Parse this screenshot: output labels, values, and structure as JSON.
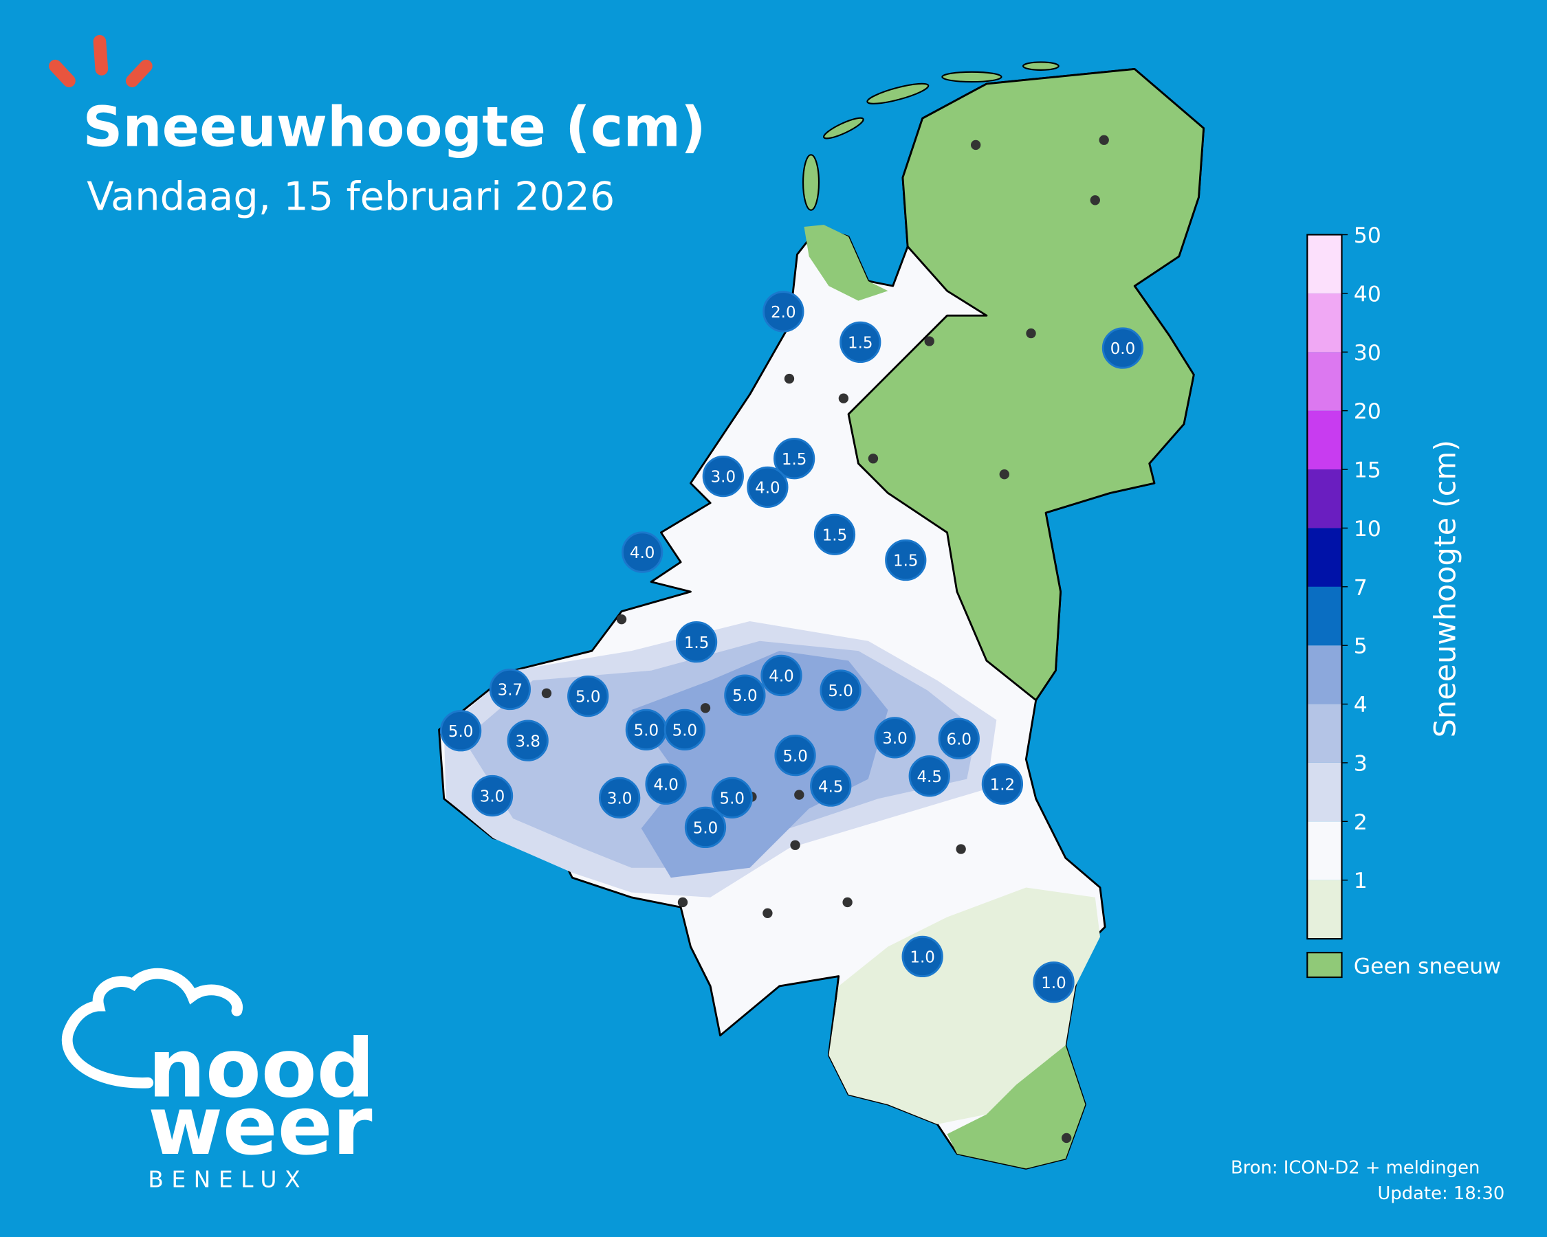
{
  "header": {
    "title": "Sneeuwhoogte (cm)",
    "subtitle": "Vandaag, 15 februari 2026"
  },
  "markers": [
    "2.0",
    "1.5",
    "0.0",
    "1.5",
    "3.0",
    "4.0",
    "1.5",
    "1.5",
    "4.0",
    "1.5",
    "3.7",
    "5.0",
    "4.0",
    "5.0",
    "5.0",
    "5.0",
    "3.8",
    "5.0",
    "5.0",
    "3.0",
    "6.0",
    "5.0",
    "4.5",
    "1.2",
    "3.0",
    "3.0",
    "4.0",
    "5.0",
    "4.5",
    "5.0",
    "1.0",
    "1.0"
  ],
  "legend": {
    "title": "Sneeuwhoogte (cm)",
    "ticks": [
      1,
      2,
      3,
      4,
      5,
      7,
      10,
      15,
      20,
      30,
      40,
      50
    ],
    "colors": [
      "#e6f0dc",
      "#f8f9fc",
      "#d6ddf0",
      "#b4c4e6",
      "#8ca8dc",
      "#0a6ec2",
      "#0012a8",
      "#6a1ec0",
      "#c83cf0",
      "#dc78f0",
      "#f0a8f4",
      "#fce0fc"
    ],
    "no_snow_label": "Geen sneeuw",
    "no_snow_color": "#90c978"
  },
  "footer": {
    "source": "Bron: ICON-D2 + meldingen",
    "update": "Update: 18:30"
  },
  "logo": {
    "line1": "nood",
    "line2": "weer",
    "line3": "BENELUX"
  }
}
